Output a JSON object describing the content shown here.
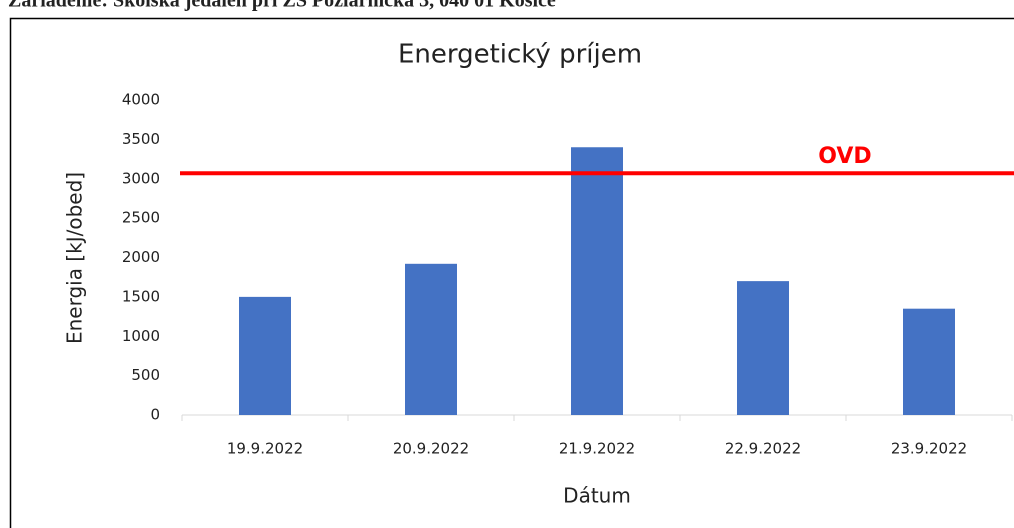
{
  "header": {
    "text": "Zariadenie: Školská jedáleň pri ZŠ Požiarnická 3, 040 01 Košice"
  },
  "chart_data": {
    "type": "bar",
    "title": "Energetický príjem",
    "x_label": "Dátum",
    "y_label": "Energia [kJ/obed]",
    "categories": [
      "19.9.2022",
      "20.9.2022",
      "21.9.2022",
      "22.9.2022",
      "23.9.2022"
    ],
    "values": [
      1500,
      1920,
      3400,
      1700,
      1350
    ],
    "color": "#4472c4",
    "ylim": [
      0,
      4000
    ],
    "yticks": [
      0,
      500,
      1000,
      1500,
      2000,
      2500,
      3000,
      3500,
      4000
    ],
    "grid": false,
    "reference_line": {
      "label": "OVD",
      "value": 3070,
      "color": "#ff0000"
    }
  }
}
